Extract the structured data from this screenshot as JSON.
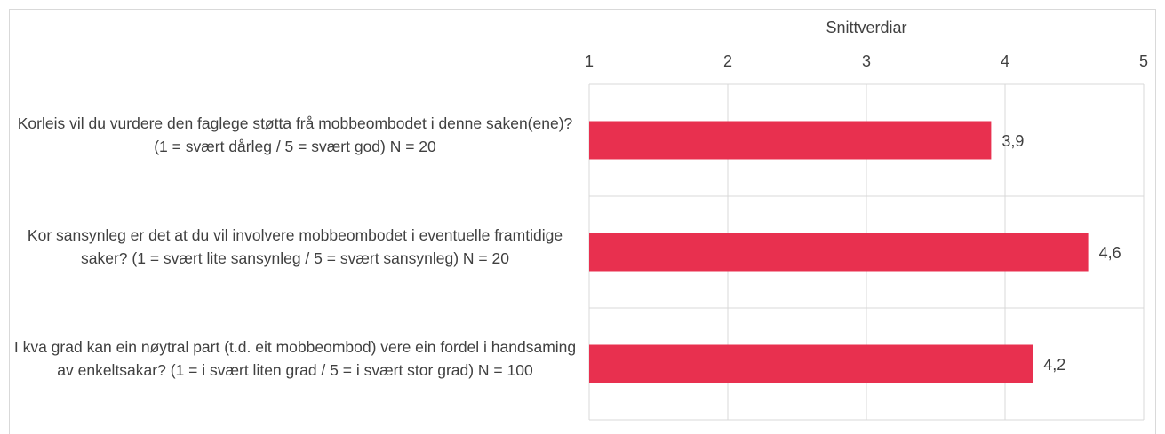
{
  "chart_data": {
    "type": "bar",
    "orientation": "horizontal",
    "x_label": "Snittverdiar",
    "categories": [
      "Korleis vil du vurdere den faglege støtta frå mobbeombodet i denne saken(ene)? (1 = svært dårleg / 5 = svært god) N = 20",
      "Kor sansynleg er det at du vil involvere mobbeombodet i eventuelle framtidige saker? (1 = svært lite sansynleg / 5 = svært sansynleg) N = 20",
      "I kva grad kan ein nøytral part (t.d. eit mobbeombod) vere ein fordel i handsaming av enkeltsakar? (1 = i svært liten grad / 5 = i svært stor grad) N = 100"
    ],
    "values": [
      3.9,
      4.6,
      4.2
    ],
    "value_labels": [
      "3,9",
      "4,6",
      "4,2"
    ],
    "color": "#e8304f",
    "xlim": [
      1,
      5
    ],
    "xticks": [
      1,
      2,
      3,
      4,
      5
    ],
    "grid": true
  }
}
